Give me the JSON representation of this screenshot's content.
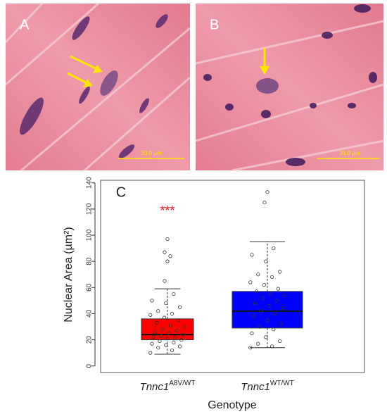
{
  "panels": [
    {
      "label": "A",
      "scale": "20.0 µm"
    },
    {
      "label": "B",
      "scale": "20.0 µm"
    }
  ],
  "chart_data": {
    "type": "box",
    "panel_label": "C",
    "y_label": "Nuclear Area (µm²)",
    "x_label": "Genotype",
    "annotation": {
      "text": "***",
      "color": "#e8141b"
    },
    "categories": [
      {
        "name": "Tnnc1",
        "sup": "A8V/WT"
      },
      {
        "name": "Tnnc1",
        "sup": "WT/WT"
      }
    ],
    "ylim": [
      -5,
      142
    ],
    "yticks": [
      0,
      20,
      40,
      60,
      80,
      100,
      120,
      140
    ],
    "boxes": [
      {
        "color": "#ff0000",
        "min": 9,
        "q1": 20,
        "median": 24,
        "q3": 36,
        "max": 59,
        "outliers": [
          65,
          80,
          84,
          87,
          97
        ],
        "points": [
          10,
          12,
          14,
          15,
          16,
          17,
          18,
          19,
          20,
          21,
          22,
          22,
          23,
          24,
          25,
          26,
          27,
          28,
          30,
          31,
          33,
          35,
          37,
          39,
          40,
          42,
          45,
          48,
          50,
          55
        ]
      },
      {
        "color": "#0000ff",
        "min": 14,
        "q1": 29,
        "median": 42,
        "q3": 57,
        "max": 95,
        "outliers": [
          125,
          133
        ],
        "points": [
          14,
          15,
          17,
          19,
          22,
          25,
          28,
          30,
          32,
          35,
          38,
          40,
          42,
          44,
          46,
          48,
          50,
          52,
          54,
          55,
          57,
          59,
          62,
          64,
          68,
          70,
          72,
          80,
          85,
          90
        ]
      }
    ]
  }
}
